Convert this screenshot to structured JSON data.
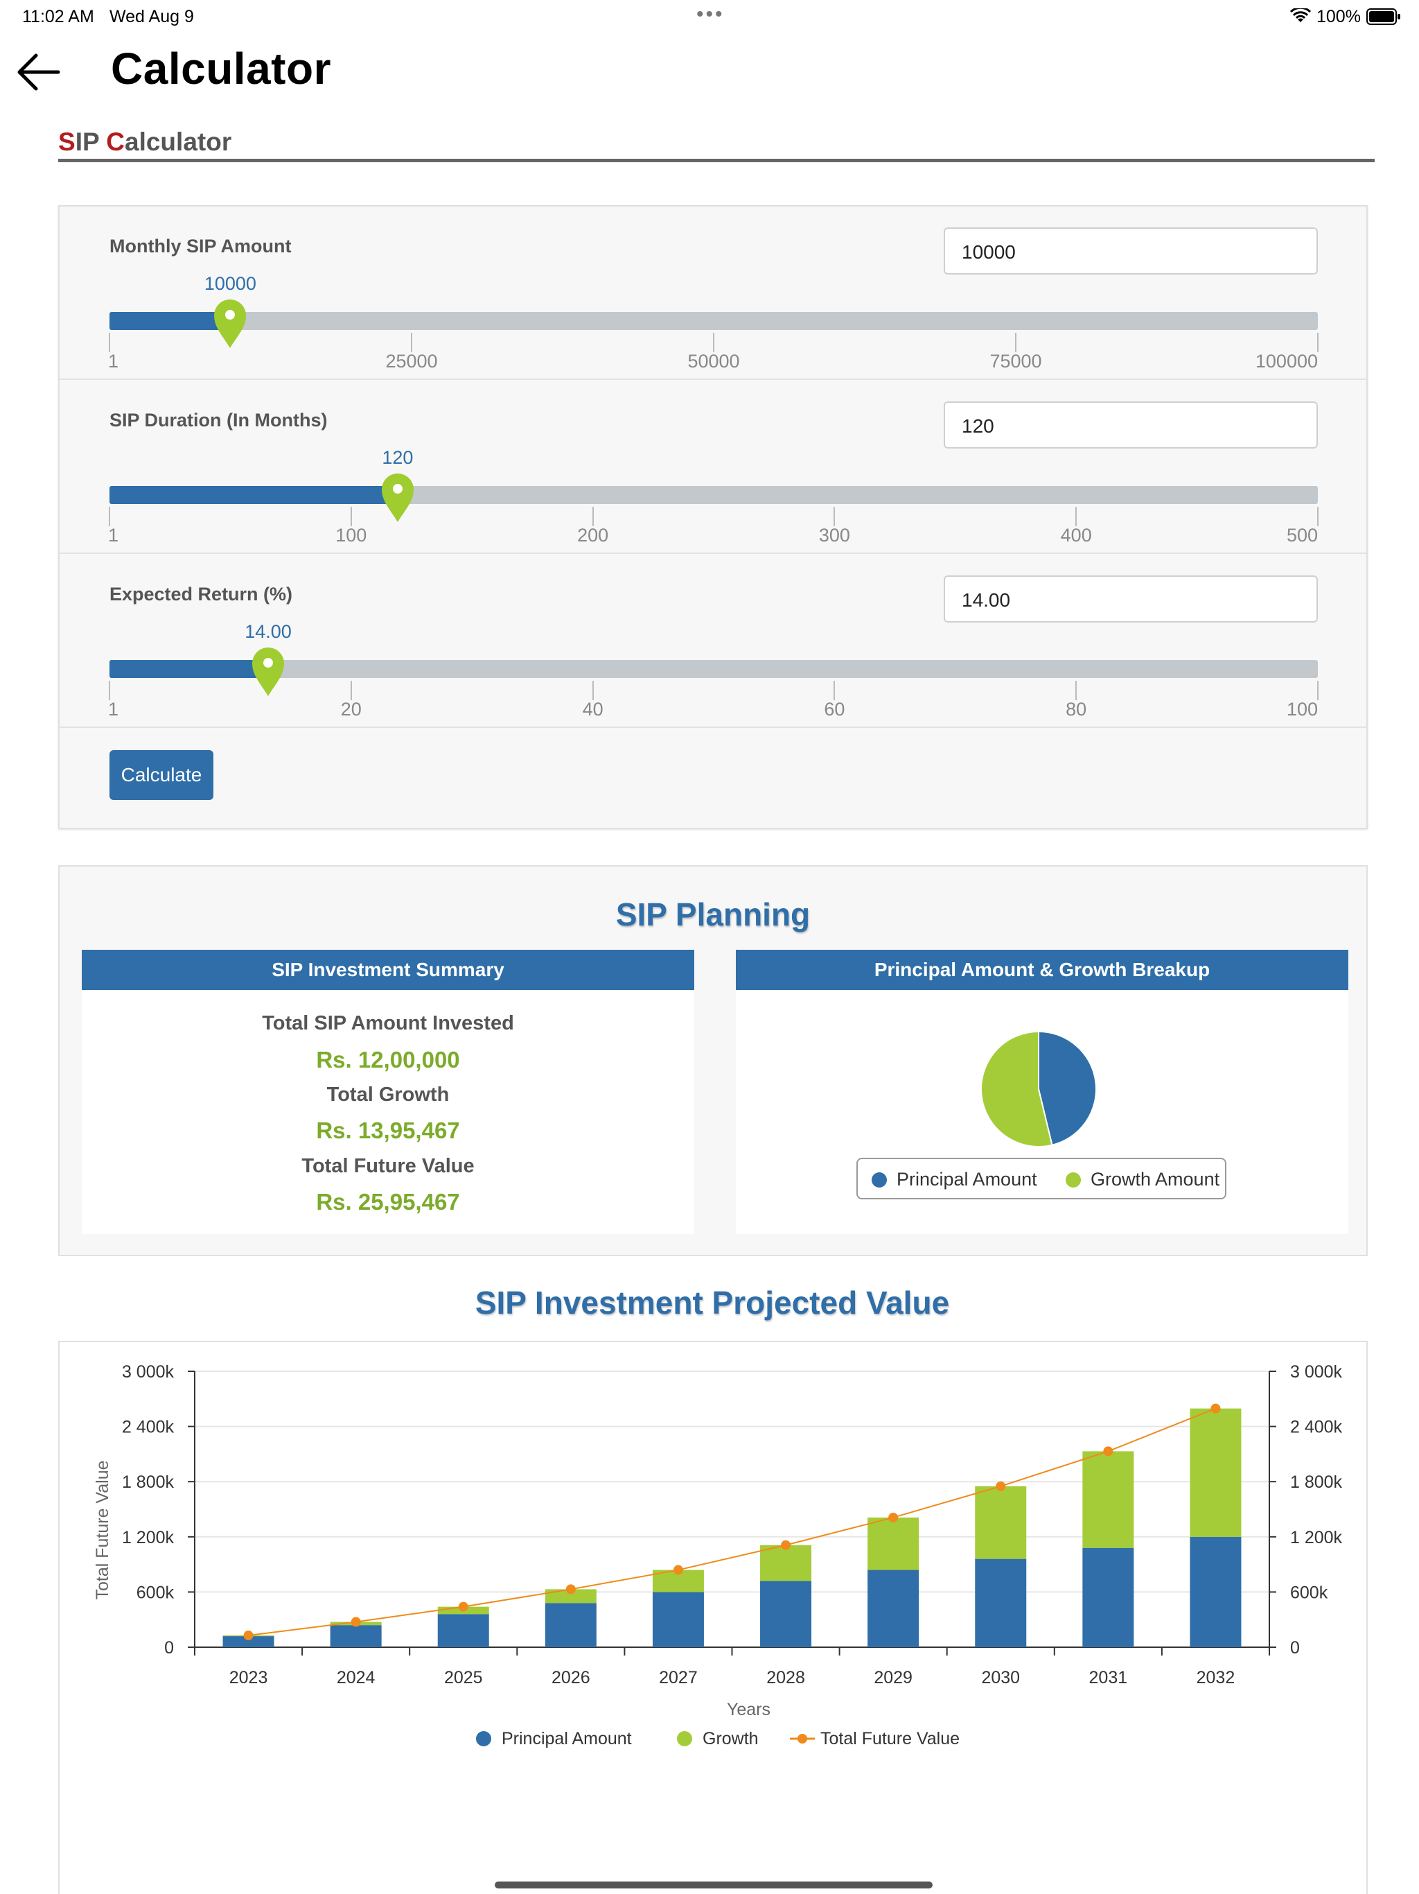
{
  "status": {
    "time": "11:02 AM",
    "date": "Wed Aug 9",
    "battery": "100%"
  },
  "header": {
    "title": "Calculator"
  },
  "section": {
    "first_s": "S",
    "ip": "IP ",
    "first_c": "C",
    "rest": "alculator"
  },
  "calculator": {
    "rows": [
      {
        "label": "Monthly SIP Amount",
        "value": "10000",
        "min": 1,
        "max": 100000,
        "current": 10000,
        "ticks": [
          "1",
          "25000",
          "50000",
          "75000",
          "100000"
        ]
      },
      {
        "label": "SIP Duration (In Months)",
        "value": "120",
        "min": 1,
        "max": 500,
        "current": 120,
        "ticks": [
          "1",
          "100",
          "200",
          "300",
          "400",
          "500"
        ]
      },
      {
        "label": "Expected Return (%)",
        "value": "14.00",
        "min": 1,
        "max": 100,
        "current": 14,
        "ticks": [
          "1",
          "20",
          "40",
          "60",
          "80",
          "100"
        ]
      }
    ],
    "calculate_label": "Calculate"
  },
  "planning": {
    "title": "SIP Planning",
    "summary": {
      "header": "SIP Investment Summary",
      "total_invested_label": "Total SIP Amount Invested",
      "total_invested_value": "Rs. 12,00,000",
      "total_growth_label": "Total Growth",
      "total_growth_value": "Rs. 13,95,467",
      "total_future_label": "Total Future Value",
      "total_future_value": "Rs. 25,95,467"
    },
    "breakup": {
      "header": "Principal Amount & Growth Breakup",
      "legend_principal": "Principal Amount",
      "legend_growth": "Growth Amount"
    }
  },
  "projection": {
    "title": "SIP Investment Projected Value"
  },
  "colors": {
    "principal": "#2f6ea8",
    "growth": "#a4cc38",
    "future": "#f08a1a",
    "accent": "#2f6ea8"
  },
  "chart_data": [
    {
      "type": "pie",
      "labels": [
        "Principal Amount",
        "Growth Amount"
      ],
      "values": [
        1200000,
        1395467
      ]
    },
    {
      "type": "bar",
      "stacked": true,
      "categories": [
        "2023",
        "2024",
        "2025",
        "2026",
        "2027",
        "2028",
        "2029",
        "2030",
        "2031",
        "2032"
      ],
      "series": [
        {
          "name": "Principal Amount",
          "kind": "bar",
          "values": [
            120000,
            240000,
            360000,
            480000,
            600000,
            720000,
            840000,
            960000,
            1080000,
            1200000
          ]
        },
        {
          "name": "Growth",
          "kind": "bar",
          "values": [
            8000,
            35000,
            80000,
            150000,
            240000,
            390000,
            570000,
            790000,
            1050000,
            1395467
          ]
        },
        {
          "name": "Total Future Value",
          "kind": "line",
          "values": [
            128000,
            275000,
            440000,
            630000,
            840000,
            1110000,
            1410000,
            1750000,
            2130000,
            2595467
          ]
        }
      ],
      "ylabel": "Total Future Value",
      "xlabel": "Years",
      "ylim": [
        0,
        3000000
      ],
      "yticks": [
        "0",
        "600k",
        "1 200k",
        "1 800k",
        "2 400k",
        "3 000k"
      ],
      "y2ticks": [
        "0",
        "600k",
        "1 200k",
        "1 800k",
        "2 400k",
        "3 000k"
      ],
      "grid": true,
      "legend": "bottom"
    }
  ]
}
